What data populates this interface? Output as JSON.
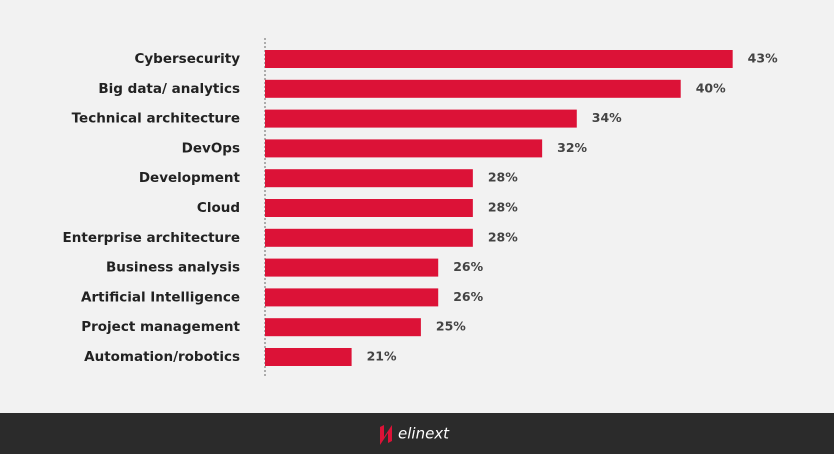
{
  "chart_data": {
    "type": "bar",
    "orientation": "horizontal",
    "categories": [
      "Cybersecurity",
      "Big data/ analytics",
      "Technical architecture",
      "DevOps",
      "Development",
      "Cloud",
      "Enterprise architecture",
      "Business analysis",
      "Artificial Intelligence",
      "Project management",
      "Automation/robotics"
    ],
    "values": [
      43,
      40,
      34,
      32,
      28,
      28,
      28,
      26,
      26,
      25,
      21
    ],
    "value_labels": [
      "43%",
      "40%",
      "34%",
      "32%",
      "28%",
      "28%",
      "28%",
      "26%",
      "26%",
      "25%",
      "21%"
    ],
    "color": "#dc1237",
    "xlim": [
      16,
      44
    ]
  },
  "brand": "elinext"
}
